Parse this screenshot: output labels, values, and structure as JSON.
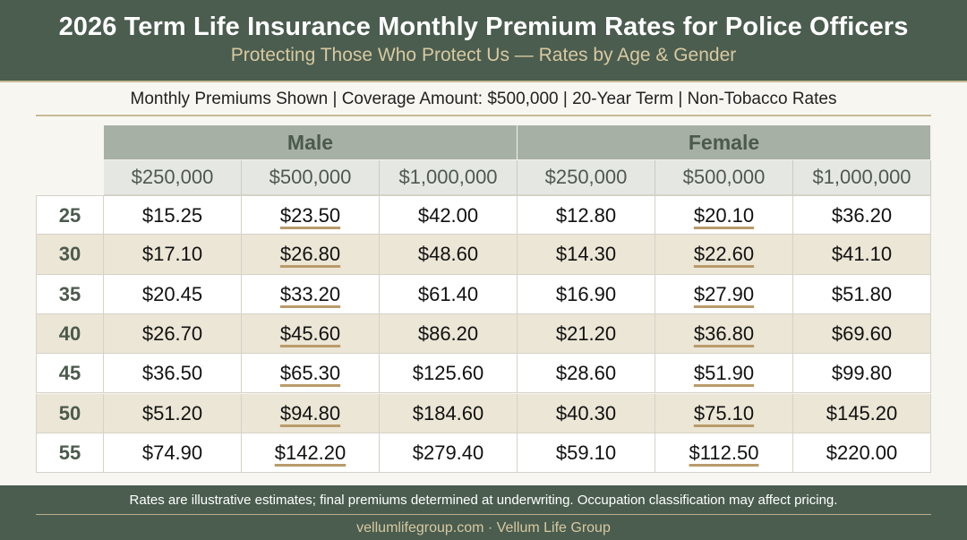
{
  "header": {
    "title": "2026 Term Life Insurance Monthly Premium Rates for Police Officers",
    "subtitle": "Protecting Those Who Protect Us — Rates by Age & Gender"
  },
  "info_line": "Monthly Premiums Shown | Coverage Amount: $500,000 | 20-Year Term | Non-Tobacco Rates",
  "colors": {
    "header_bg": "#4a5d4f",
    "accent_gold": "#c9bb95",
    "gender_header_bg": "#a7b0a5",
    "coverage_header_bg": "#e5e8e2",
    "alt_row_bg": "#ece6d6",
    "highlight_underline": "#b99b6b"
  },
  "chart_data": {
    "type": "table",
    "groups": [
      "Male",
      "Female"
    ],
    "coverage_levels": [
      "$250,000",
      "$500,000",
      "$1,000,000"
    ],
    "highlighted_coverage": "$500,000",
    "rows": [
      {
        "age": "25",
        "values": [
          "$15.25",
          "$23.50",
          "$42.00",
          "$12.80",
          "$20.10",
          "$36.20"
        ]
      },
      {
        "age": "30",
        "values": [
          "$17.10",
          "$26.80",
          "$48.60",
          "$14.30",
          "$22.60",
          "$41.10"
        ]
      },
      {
        "age": "35",
        "values": [
          "$20.45",
          "$33.20",
          "$61.40",
          "$16.90",
          "$27.90",
          "$51.80"
        ]
      },
      {
        "age": "40",
        "values": [
          "$26.70",
          "$45.60",
          "$86.20",
          "$21.20",
          "$36.80",
          "$69.60"
        ]
      },
      {
        "age": "45",
        "values": [
          "$36.50",
          "$65.30",
          "$125.60",
          "$28.60",
          "$51.90",
          "$99.80"
        ]
      },
      {
        "age": "50",
        "values": [
          "$51.20",
          "$94.80",
          "$184.60",
          "$40.30",
          "$75.10",
          "$145.20"
        ]
      },
      {
        "age": "55",
        "values": [
          "$74.90",
          "$142.20",
          "$279.40",
          "$59.10",
          "$112.50",
          "$220.00"
        ]
      }
    ]
  },
  "footer": {
    "note": "Rates are illustrative estimates; final premiums determined at underwriting. Occupation classification may affect pricing.",
    "brand": "vellumlifegroup.com · Vellum Life Group"
  }
}
